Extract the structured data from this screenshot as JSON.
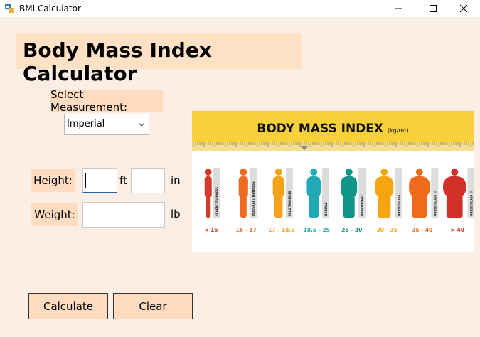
{
  "window": {
    "title": "BMI Calculator"
  },
  "heading": "Body Mass Index Calculator",
  "measurement": {
    "label": "Select Measurement:",
    "selected": "Imperial"
  },
  "height": {
    "label": "Height:",
    "feet_value": "",
    "inches_value": "",
    "feet_unit": "ft",
    "inches_unit": "in"
  },
  "weight": {
    "label": "Weight:",
    "value": "",
    "unit": "lb"
  },
  "buttons": {
    "calculate": "Calculate",
    "clear": "Clear"
  },
  "bmi_chart": {
    "title": "BODY MASS INDEX",
    "units": "(kg/m²)",
    "categories": [
      {
        "name": "SEVERE THINNESS",
        "range": "< 16",
        "color": "#d63a2b"
      },
      {
        "name": "MODERATE THINNESS",
        "range": "16 - 17",
        "color": "#ef6b24"
      },
      {
        "name": "MILD THINNESS",
        "range": "17 - 18.5",
        "color": "#f4a21a"
      },
      {
        "name": "NORMAL",
        "range": "18.5 - 25",
        "color": "#22a9b5"
      },
      {
        "name": "OVERWEIGHT",
        "range": "25 - 30",
        "color": "#119587"
      },
      {
        "name": "OBESE CLASS I",
        "range": "30 - 35",
        "color": "#f5a50f"
      },
      {
        "name": "OBESE CLASS II",
        "range": "35 - 40",
        "color": "#f06a1b"
      },
      {
        "name": "OBESE CLASS III",
        "range": "> 40",
        "color": "#d2312a"
      }
    ]
  },
  "colors": {
    "background": "#fbefe5",
    "label_bg": "#ffdcc0",
    "heading_bg": "#ffe1c6",
    "banner": "#f7d03a"
  }
}
